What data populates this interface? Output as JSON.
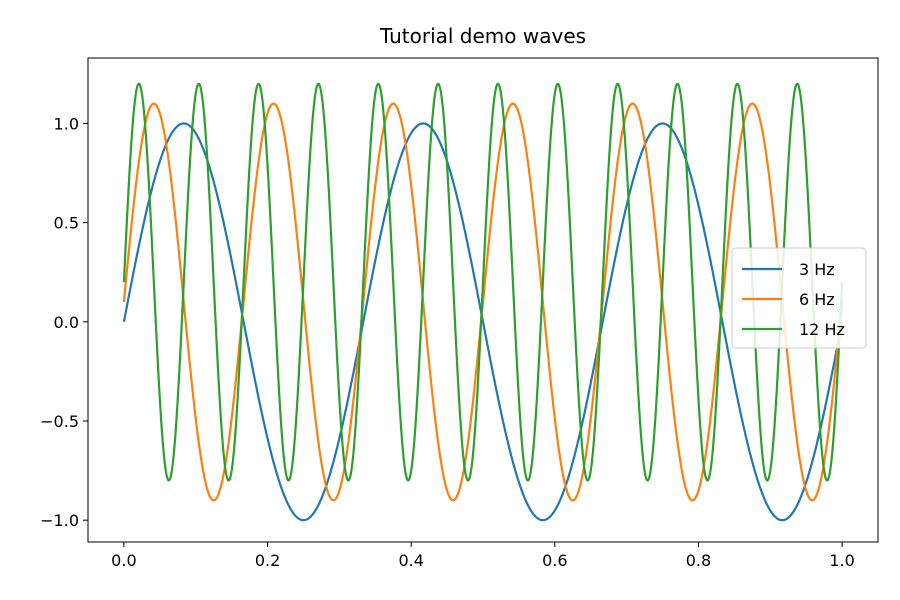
{
  "chart_data": {
    "type": "line",
    "title": "Tutorial demo waves",
    "xlabel": "",
    "ylabel": "",
    "xlim": [
      -0.05,
      1.05
    ],
    "ylim": [
      -1.11,
      1.33
    ],
    "xticks": [
      0.0,
      0.2,
      0.4,
      0.6,
      0.8,
      1.0
    ],
    "xtick_labels": [
      "0.0",
      "0.2",
      "0.4",
      "0.6",
      "0.8",
      "1.0"
    ],
    "yticks": [
      -1.0,
      -0.5,
      0.0,
      0.5,
      1.0
    ],
    "ytick_labels": [
      "−1.0",
      "−0.5",
      "0.0",
      "0.5",
      "1.0"
    ],
    "grid": false,
    "legend_position": "center-right",
    "x_range": [
      0,
      1
    ],
    "series": [
      {
        "name": "3 Hz",
        "frequency": 3,
        "amplitude": 1.0,
        "offset": 0.0,
        "color": "#1f77b4"
      },
      {
        "name": "6 Hz",
        "frequency": 6,
        "amplitude": 1.0,
        "offset": 0.1,
        "color": "#ff7f0e"
      },
      {
        "name": "12 Hz",
        "frequency": 12,
        "amplitude": 1.0,
        "offset": 0.2,
        "color": "#2ca02c"
      }
    ]
  }
}
